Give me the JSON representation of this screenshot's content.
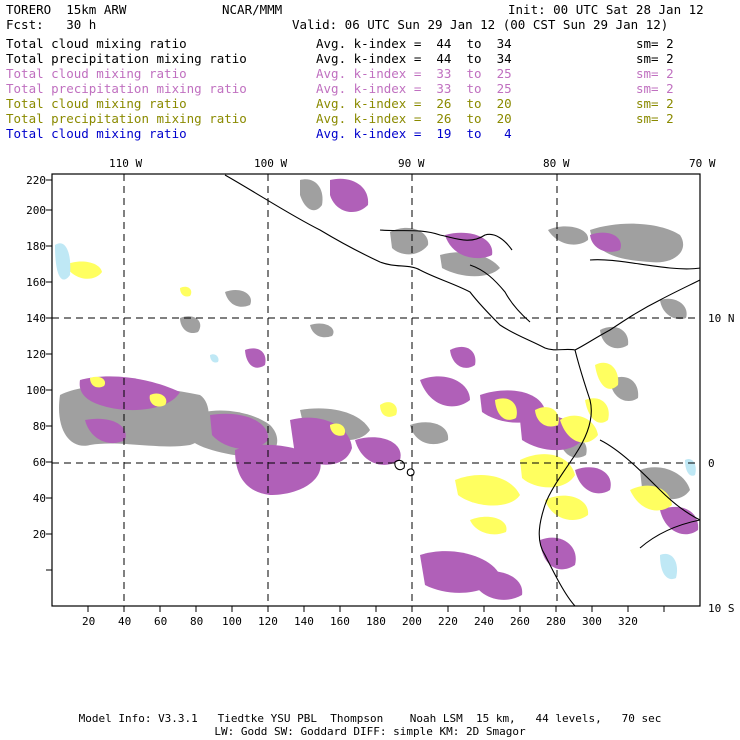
{
  "header": {
    "model": "TORERO  15km ARW",
    "org": "NCAR/MMM",
    "init": "Init: 00 UTC Sat 28 Jan 12",
    "fcst": "Fcst:   30 h",
    "valid": "Valid: 06 UTC Sun 29 Jan 12 (00 CST Sun 29 Jan 12)"
  },
  "legend": [
    {
      "field": "Total cloud mixing ratio",
      "index": "Avg. k-index =  44  to  34",
      "sm": "sm= 2",
      "color": "#000000"
    },
    {
      "field": "Total precipitation mixing ratio",
      "index": "Avg. k-index =  44  to  34",
      "sm": "sm= 2",
      "color": "#000000"
    },
    {
      "field": "Total cloud mixing ratio",
      "index": "Avg. k-index =  33  to  25",
      "sm": "sm= 2",
      "color": "#c070c0"
    },
    {
      "field": "Total precipitation mixing ratio",
      "index": "Avg. k-index =  33  to  25",
      "sm": "sm= 2",
      "color": "#c070c0"
    },
    {
      "field": "Total cloud mixing ratio",
      "index": "Avg. k-index =  26  to  20",
      "sm": "sm= 2",
      "color": "#8a8a00"
    },
    {
      "field": "Total precipitation mixing ratio",
      "index": "Avg. k-index =  26  to  20",
      "sm": "sm= 2",
      "color": "#8a8a00"
    },
    {
      "field": "Total cloud mixing ratio",
      "index": "Avg. k-index =  19  to   4",
      "sm": "",
      "color": "#0000cc"
    }
  ],
  "map": {
    "lon_labels": [
      "110 W",
      "100 W",
      "90 W",
      "80 W",
      "70 W"
    ],
    "lat_labels": [
      "10 N",
      "0",
      "10 S"
    ],
    "x_ticks": [
      "20",
      "40",
      "60",
      "80",
      "100",
      "120",
      "140",
      "160",
      "180",
      "200",
      "220",
      "240",
      "260",
      "280",
      "300",
      "320"
    ],
    "y_ticks": [
      "220",
      "200",
      "180",
      "160",
      "140",
      "120",
      "100",
      "80",
      "60",
      "40",
      "20"
    ],
    "colors": {
      "gray": "#a0a0a0",
      "purple": "#b060b8",
      "yellow": "#ffff60",
      "lightblue": "#bfe8f5"
    }
  },
  "footer": {
    "line1": "Model Info: V3.3.1   Tiedtke YSU PBL  Thompson    Noah LSM  15 km,   44 levels,   70 sec",
    "line2": "LW: Godd SW: Goddard DIFF: simple KM: 2D Smagor"
  }
}
